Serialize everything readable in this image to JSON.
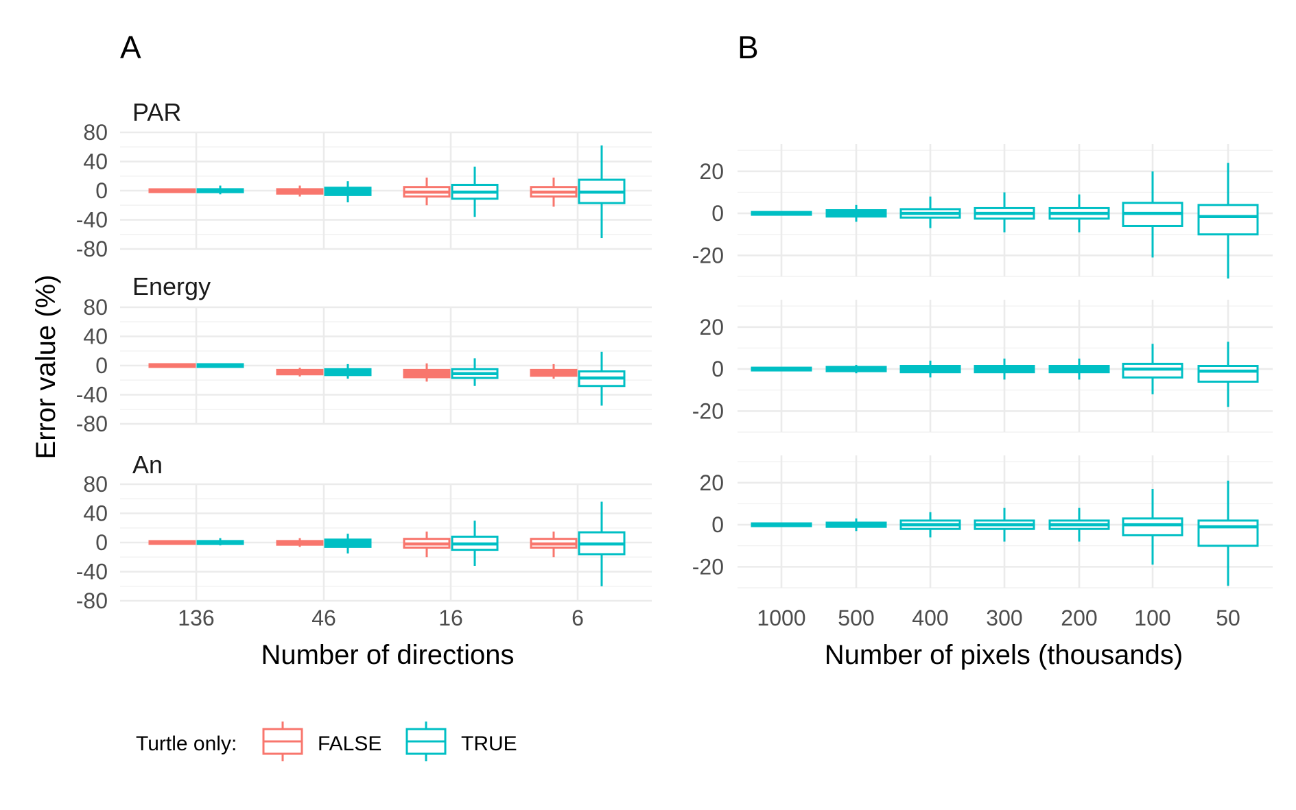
{
  "chart_data": [
    {
      "type": "box",
      "panel_label": "A",
      "xlabel": "Number of directions",
      "ylabel": "Error value (%)",
      "categories": [
        "136",
        "46",
        "16",
        "6"
      ],
      "ylim": [
        -80,
        80
      ],
      "yticks": [
        80,
        40,
        0,
        -40,
        -80
      ],
      "grid": true,
      "facets": [
        {
          "label": "PAR",
          "series": [
            {
              "name": "FALSE",
              "boxes": [
                {
                  "min": -1,
                  "q1": -0.5,
                  "median": 0,
                  "q3": 0.5,
                  "max": 1
                },
                {
                  "min": -8,
                  "q1": -4,
                  "median": -1,
                  "q3": 2,
                  "max": 7
                },
                {
                  "min": -20,
                  "q1": -8,
                  "median": -2,
                  "q3": 5,
                  "max": 18
                },
                {
                  "min": -22,
                  "q1": -8,
                  "median": -2,
                  "q3": 5,
                  "max": 18
                }
              ]
            },
            {
              "name": "TRUE",
              "boxes": [
                {
                  "min": -5,
                  "q1": -2,
                  "median": 0,
                  "q3": 2,
                  "max": 7
                },
                {
                  "min": -16,
                  "q1": -6,
                  "median": -1,
                  "q3": 4,
                  "max": 13
                },
                {
                  "min": -36,
                  "q1": -11,
                  "median": -2,
                  "q3": 8,
                  "max": 33
                },
                {
                  "min": -65,
                  "q1": -17,
                  "median": -2,
                  "q3": 15,
                  "max": 62
                }
              ]
            }
          ]
        },
        {
          "label": "Energy",
          "series": [
            {
              "name": "FALSE",
              "boxes": [
                {
                  "min": -1,
                  "q1": -0.5,
                  "median": 0,
                  "q3": 0.5,
                  "max": 1
                },
                {
                  "min": -15,
                  "q1": -12,
                  "median": -9,
                  "q3": -6,
                  "max": -3
                },
                {
                  "min": -22,
                  "q1": -16,
                  "median": -11,
                  "q3": -6,
                  "max": 3
                },
                {
                  "min": -18,
                  "q1": -14,
                  "median": -10,
                  "q3": -6,
                  "max": 2
                }
              ]
            },
            {
              "name": "TRUE",
              "boxes": [
                {
                  "min": -2,
                  "q1": -1,
                  "median": 0,
                  "q3": 1,
                  "max": 2
                },
                {
                  "min": -18,
                  "q1": -13,
                  "median": -9,
                  "q3": -5,
                  "max": 2
                },
                {
                  "min": -28,
                  "q1": -17,
                  "median": -11,
                  "q3": -5,
                  "max": 10
                },
                {
                  "min": -55,
                  "q1": -28,
                  "median": -17,
                  "q3": -8,
                  "max": 19
                }
              ]
            }
          ]
        },
        {
          "label": "An",
          "series": [
            {
              "name": "FALSE",
              "boxes": [
                {
                  "min": -1,
                  "q1": -0.5,
                  "median": 0,
                  "q3": 0.5,
                  "max": 1
                },
                {
                  "min": -6,
                  "q1": -3,
                  "median": -1,
                  "q3": 2,
                  "max": 6
                },
                {
                  "min": -20,
                  "q1": -7,
                  "median": -2,
                  "q3": 5,
                  "max": 15
                },
                {
                  "min": -20,
                  "q1": -7,
                  "median": -2,
                  "q3": 5,
                  "max": 15
                }
              ]
            },
            {
              "name": "TRUE",
              "boxes": [
                {
                  "min": -4,
                  "q1": -2,
                  "median": 0,
                  "q3": 2,
                  "max": 6
                },
                {
                  "min": -15,
                  "q1": -6,
                  "median": -1,
                  "q3": 4,
                  "max": 12
                },
                {
                  "min": -32,
                  "q1": -10,
                  "median": -2,
                  "q3": 8,
                  "max": 30
                },
                {
                  "min": -60,
                  "q1": -16,
                  "median": -2,
                  "q3": 14,
                  "max": 56
                }
              ]
            }
          ]
        }
      ]
    },
    {
      "type": "box",
      "panel_label": "B",
      "xlabel": "Number of pixels (thousands)",
      "ylabel": "",
      "categories": [
        "1000",
        "500",
        "400",
        "300",
        "200",
        "100",
        "50"
      ],
      "ylim": [
        -30,
        33
      ],
      "yticks": [
        20,
        0,
        -20
      ],
      "grid": true,
      "facets": [
        {
          "label": "",
          "series": [
            {
              "name": "TRUE",
              "boxes": [
                {
                  "min": -0.5,
                  "q1": -0.3,
                  "median": 0,
                  "q3": 0.3,
                  "max": 0.5
                },
                {
                  "min": -4,
                  "q1": -1.5,
                  "median": 0,
                  "q3": 1.5,
                  "max": 4
                },
                {
                  "min": -7,
                  "q1": -2,
                  "median": 0,
                  "q3": 2,
                  "max": 8
                },
                {
                  "min": -9,
                  "q1": -2.5,
                  "median": 0,
                  "q3": 2.5,
                  "max": 10
                },
                {
                  "min": -9,
                  "q1": -2.5,
                  "median": 0,
                  "q3": 2.5,
                  "max": 9
                },
                {
                  "min": -21,
                  "q1": -6,
                  "median": 0,
                  "q3": 5,
                  "max": 20
                },
                {
                  "min": -31,
                  "q1": -10,
                  "median": -1.5,
                  "q3": 4,
                  "max": 24
                }
              ]
            }
          ]
        },
        {
          "label": "",
          "series": [
            {
              "name": "TRUE",
              "boxes": [
                {
                  "min": -0.5,
                  "q1": -0.3,
                  "median": 0,
                  "q3": 0.3,
                  "max": 0.5
                },
                {
                  "min": -2,
                  "q1": -1,
                  "median": 0,
                  "q3": 1,
                  "max": 2
                },
                {
                  "min": -4,
                  "q1": -1.5,
                  "median": 0,
                  "q3": 1.5,
                  "max": 4
                },
                {
                  "min": -5,
                  "q1": -1.5,
                  "median": 0,
                  "q3": 1.5,
                  "max": 5
                },
                {
                  "min": -5,
                  "q1": -1.5,
                  "median": 0,
                  "q3": 1.5,
                  "max": 5
                },
                {
                  "min": -12,
                  "q1": -4,
                  "median": 0,
                  "q3": 2.5,
                  "max": 12
                },
                {
                  "min": -18,
                  "q1": -6,
                  "median": -1,
                  "q3": 1.5,
                  "max": 13
                }
              ]
            }
          ]
        },
        {
          "label": "",
          "series": [
            {
              "name": "TRUE",
              "boxes": [
                {
                  "min": -0.5,
                  "q1": -0.3,
                  "median": 0,
                  "q3": 0.3,
                  "max": 0.5
                },
                {
                  "min": -3,
                  "q1": -1,
                  "median": 0,
                  "q3": 1,
                  "max": 3
                },
                {
                  "min": -6,
                  "q1": -2,
                  "median": 0,
                  "q3": 2,
                  "max": 6
                },
                {
                  "min": -8,
                  "q1": -2,
                  "median": 0,
                  "q3": 2,
                  "max": 8
                },
                {
                  "min": -8,
                  "q1": -2,
                  "median": 0,
                  "q3": 2,
                  "max": 8
                },
                {
                  "min": -19,
                  "q1": -5,
                  "median": 0,
                  "q3": 3,
                  "max": 17
                },
                {
                  "min": -29,
                  "q1": -10,
                  "median": -1,
                  "q3": 2,
                  "max": 21
                }
              ]
            }
          ]
        }
      ]
    }
  ],
  "legend": {
    "title": "Turtle only:",
    "position": "bottom",
    "items": [
      {
        "label": "FALSE",
        "color": "#F8766D"
      },
      {
        "label": "TRUE",
        "color": "#00BFC4"
      }
    ]
  },
  "colors": {
    "FALSE": "#F8766D",
    "TRUE": "#00BFC4"
  }
}
